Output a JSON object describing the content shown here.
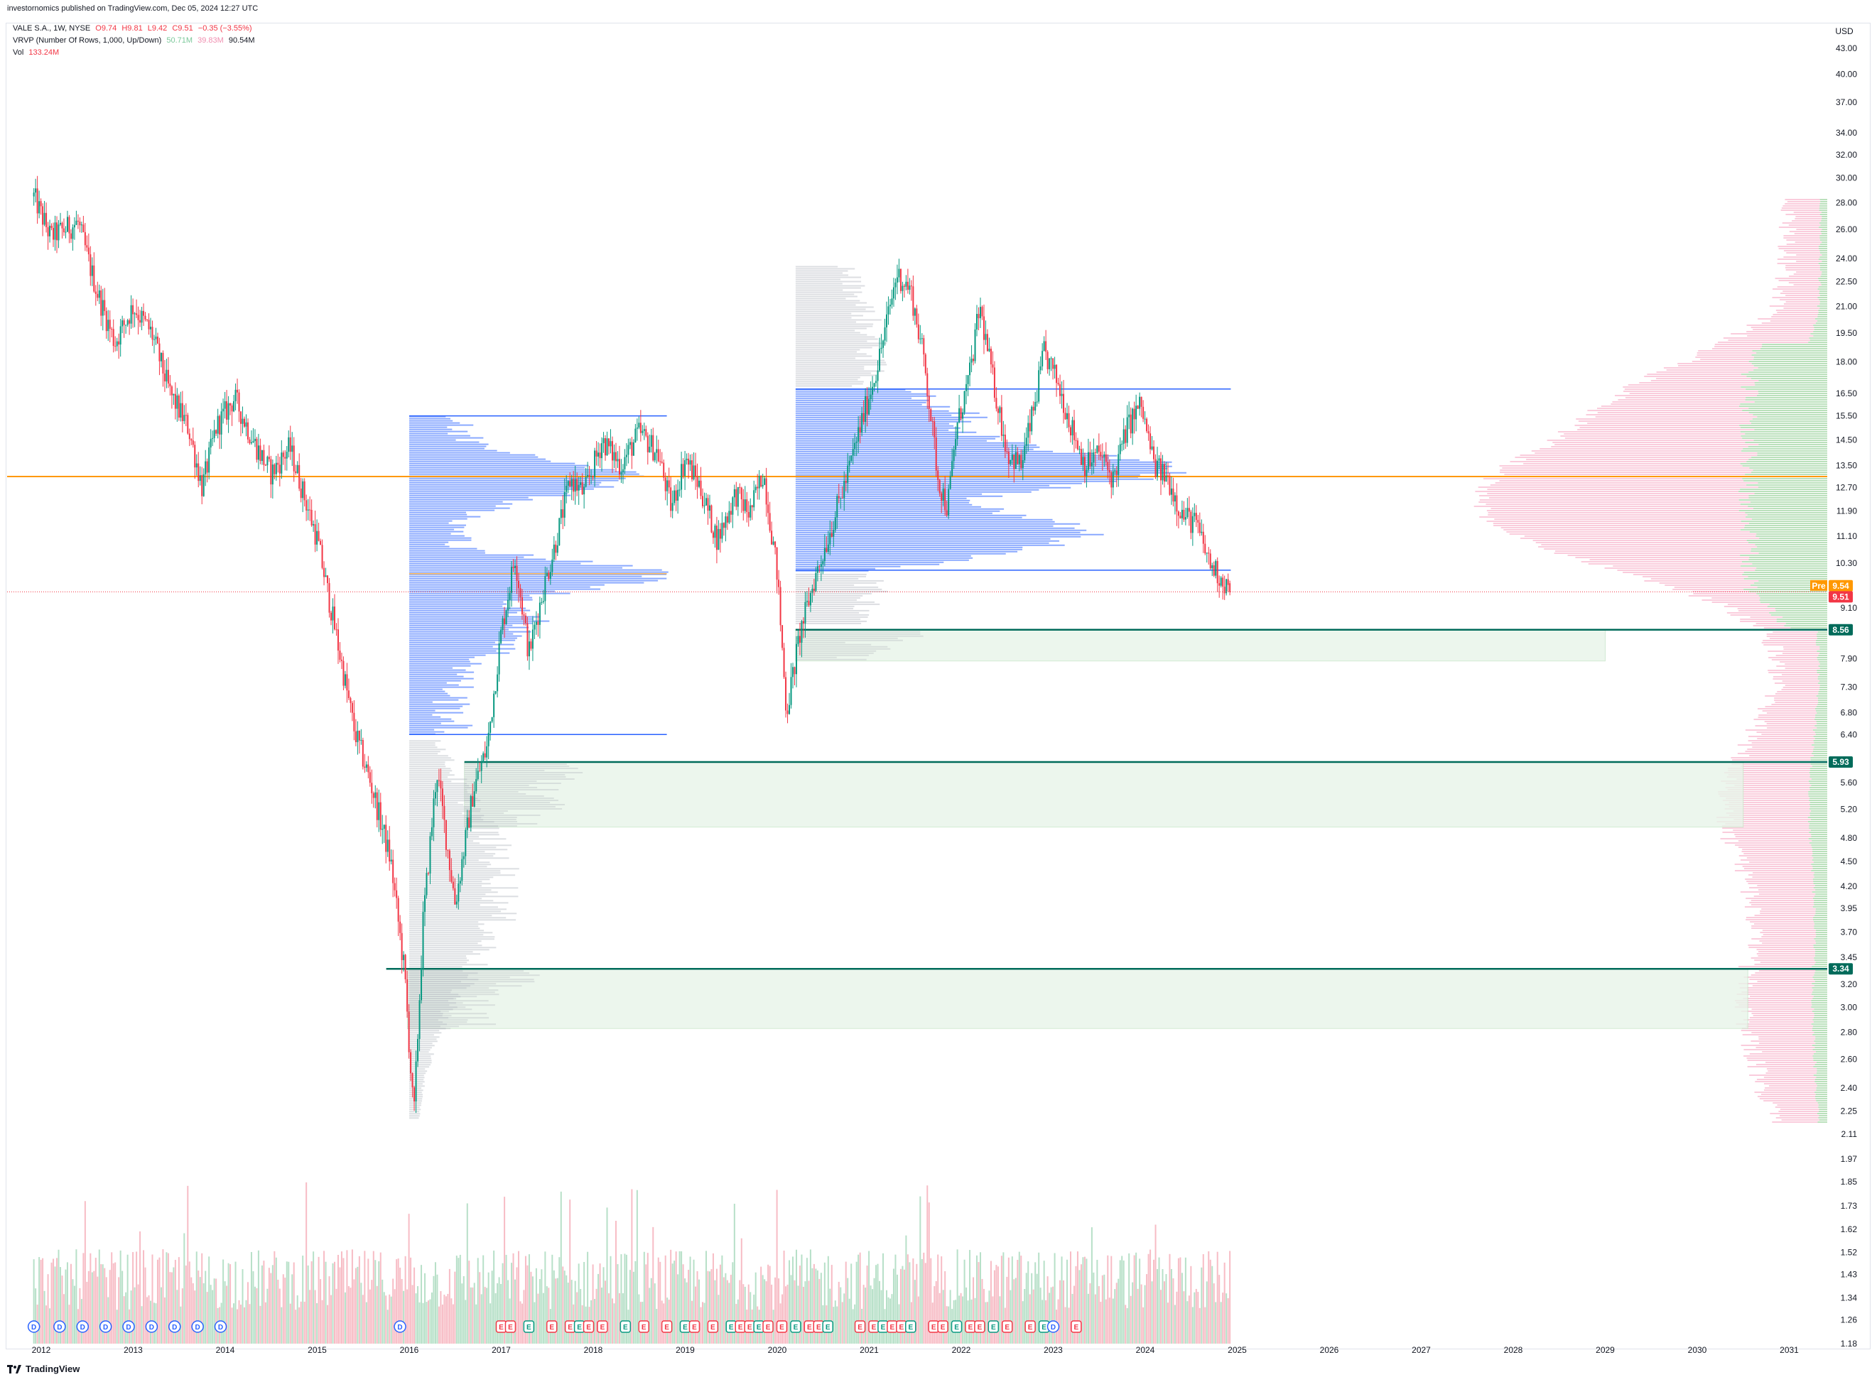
{
  "header": {
    "published": "investornomics published on TradingView.com, Dec 05, 2024 12:27 UTC"
  },
  "legend": {
    "symbol": "VALE S.A., 1W, NYSE",
    "open": "O9.74",
    "high": "H9.81",
    "low": "L9.42",
    "close": "C9.51",
    "change": "−0.35 (−3.55%)",
    "vrvp_label": "VRVP (Number Of Rows, 1,000, Up/Down)",
    "vrvp_up": "50.71M",
    "vrvp_down": "39.83M",
    "vrvp_total": "90.54M",
    "vol_label": "Vol",
    "vol_value": "133.24M"
  },
  "footer": {
    "brand": "TradingView"
  },
  "colors": {
    "up": "#089981",
    "down": "#f23645",
    "vp_blue": "#2962ff",
    "orange": "#ff9800",
    "dark_green": "#006b5a",
    "vp_gray": "#b2b5be",
    "vp_pink": "#f48fb1",
    "vp_green": "#81c784"
  },
  "chart_data": {
    "type": "candlestick",
    "title": "VALE S.A., 1W, NYSE",
    "currency": "USD",
    "y_scale": "log",
    "ylim": [
      1.17,
      47
    ],
    "x_axis_labels": [
      "2012",
      "2013",
      "2014",
      "2015",
      "2016",
      "2017",
      "2018",
      "2019",
      "2020",
      "2021",
      "2022",
      "2023",
      "2024",
      "2025",
      "2026",
      "2027",
      "2028",
      "2029",
      "2030",
      "2031"
    ],
    "y_axis_labels": [
      "43.00",
      "40.00",
      "37.00",
      "34.00",
      "32.00",
      "30.00",
      "28.00",
      "26.00",
      "24.00",
      "22.50",
      "21.00",
      "19.50",
      "18.00",
      "16.50",
      "15.50",
      "14.50",
      "13.50",
      "12.70",
      "11.90",
      "11.10",
      "10.30",
      "9.10",
      "7.90",
      "7.30",
      "6.80",
      "6.40",
      "5.60",
      "5.20",
      "4.80",
      "4.50",
      "4.20",
      "3.95",
      "3.70",
      "3.45",
      "3.20",
      "3.00",
      "2.80",
      "2.60",
      "2.40",
      "2.25",
      "2.11",
      "1.97",
      "1.85",
      "1.73",
      "1.62",
      "1.52",
      "1.43",
      "1.34",
      "1.26",
      "1.18"
    ],
    "price_path": [
      [
        2011.92,
        28.5
      ],
      [
        2012.1,
        25.5
      ],
      [
        2012.4,
        26.5
      ],
      [
        2012.6,
        22
      ],
      [
        2012.8,
        19
      ],
      [
        2013.0,
        21
      ],
      [
        2013.2,
        19.5
      ],
      [
        2013.4,
        16.5
      ],
      [
        2013.6,
        15
      ],
      [
        2013.75,
        12.7
      ],
      [
        2013.9,
        15
      ],
      [
        2014.1,
        16.3
      ],
      [
        2014.3,
        14.5
      ],
      [
        2014.5,
        13.2
      ],
      [
        2014.7,
        14.2
      ],
      [
        2014.85,
        12.5
      ],
      [
        2015.0,
        11
      ],
      [
        2015.2,
        8.5
      ],
      [
        2015.4,
        6.5
      ],
      [
        2015.6,
        5.5
      ],
      [
        2015.8,
        4.5
      ],
      [
        2015.95,
        3.3
      ],
      [
        2016.05,
        2.2
      ],
      [
        2016.15,
        3.8
      ],
      [
        2016.3,
        5.8
      ],
      [
        2016.5,
        4.0
      ],
      [
        2016.7,
        5.5
      ],
      [
        2016.85,
        6.2
      ],
      [
        2017.0,
        8.5
      ],
      [
        2017.15,
        10.5
      ],
      [
        2017.3,
        8.0
      ],
      [
        2017.45,
        9.5
      ],
      [
        2017.6,
        11
      ],
      [
        2017.75,
        13
      ],
      [
        2017.9,
        12.5
      ],
      [
        2018.1,
        14.5
      ],
      [
        2018.3,
        13.5
      ],
      [
        2018.5,
        14.8
      ],
      [
        2018.7,
        14
      ],
      [
        2018.85,
        12
      ],
      [
        2019.0,
        13.8
      ],
      [
        2019.15,
        12.8
      ],
      [
        2019.35,
        11
      ],
      [
        2019.55,
        12.5
      ],
      [
        2019.7,
        11.8
      ],
      [
        2019.85,
        13.3
      ],
      [
        2020.0,
        10
      ],
      [
        2020.1,
        6.8
      ],
      [
        2020.25,
        8.5
      ],
      [
        2020.4,
        9.8
      ],
      [
        2020.6,
        11.5
      ],
      [
        2020.75,
        13
      ],
      [
        2020.9,
        15
      ],
      [
        2021.1,
        18
      ],
      [
        2021.3,
        23
      ],
      [
        2021.45,
        22
      ],
      [
        2021.6,
        18
      ],
      [
        2021.75,
        13
      ],
      [
        2021.85,
        12
      ],
      [
        2021.95,
        15
      ],
      [
        2022.1,
        17.5
      ],
      [
        2022.2,
        21
      ],
      [
        2022.35,
        17
      ],
      [
        2022.5,
        14
      ],
      [
        2022.65,
        13.5
      ],
      [
        2022.8,
        16
      ],
      [
        2022.9,
        18.5
      ],
      [
        2023.05,
        17
      ],
      [
        2023.2,
        15
      ],
      [
        2023.35,
        13.5
      ],
      [
        2023.5,
        14
      ],
      [
        2023.65,
        13
      ],
      [
        2023.8,
        15
      ],
      [
        2023.95,
        16
      ],
      [
        2024.1,
        13.5
      ],
      [
        2024.25,
        13
      ],
      [
        2024.4,
        11.8
      ],
      [
        2024.55,
        11.5
      ],
      [
        2024.7,
        10.3
      ],
      [
        2024.85,
        9.8
      ],
      [
        2024.93,
        9.51
      ]
    ],
    "volume_profile_ranges": [
      {
        "from": 2016.0,
        "to": 2018.8,
        "low": 6.4,
        "high": 15.5,
        "color": "blue"
      },
      {
        "from": 2020.2,
        "to": 2024.93,
        "low": 10.1,
        "high": 16.7,
        "color": "blue"
      }
    ],
    "horizontal_levels": [
      {
        "price": 13.1,
        "label": "",
        "color": "orange"
      },
      {
        "price": 8.56,
        "label": "8.56",
        "color": "dark_green"
      },
      {
        "price": 5.93,
        "label": "5.93",
        "color": "dark_green"
      },
      {
        "price": 3.34,
        "label": "3.34",
        "color": "dark_green"
      }
    ],
    "price_tags": [
      {
        "price": 9.54,
        "label": "9.54",
        "prefix": "Pre",
        "color": "orange"
      },
      {
        "price": 9.51,
        "label": "9.51",
        "color": "red"
      },
      {
        "price": 8.56,
        "label": "8.56",
        "color": "dark_green"
      },
      {
        "price": 5.93,
        "label": "5.93",
        "color": "dark_green"
      },
      {
        "price": 3.34,
        "label": "3.34",
        "color": "dark_green"
      }
    ],
    "events": [
      "D",
      "D",
      "D",
      "D",
      "D",
      "D",
      "D",
      "D",
      "D",
      "D",
      "E",
      "E",
      "E",
      "E",
      "E",
      "E",
      "E",
      "E",
      "E",
      "E",
      "E",
      "E",
      "E",
      "E",
      "E",
      "E",
      "E",
      "E",
      "E",
      "E",
      "E",
      "E",
      "E",
      "E",
      "E",
      "E",
      "E",
      "E",
      "E",
      "E",
      "E",
      "E",
      "E",
      "E",
      "E",
      "E",
      "E",
      "E",
      "E",
      "D",
      "E"
    ],
    "event_times": [
      2011.92,
      2012.2,
      2012.45,
      2012.7,
      2012.95,
      2013.2,
      2013.45,
      2013.7,
      2013.95,
      2015.9,
      2017.0,
      2017.1,
      2017.3,
      2017.55,
      2017.75,
      2017.85,
      2017.95,
      2018.1,
      2018.35,
      2018.55,
      2018.8,
      2019.0,
      2019.1,
      2019.3,
      2019.5,
      2019.6,
      2019.7,
      2019.8,
      2019.9,
      2020.05,
      2020.2,
      2020.35,
      2020.45,
      2020.55,
      2020.9,
      2021.05,
      2021.15,
      2021.25,
      2021.35,
      2021.45,
      2021.7,
      2021.8,
      2021.95,
      2022.1,
      2022.2,
      2022.35,
      2022.5,
      2022.75,
      2022.9,
      2023.0,
      2023.25
    ]
  }
}
